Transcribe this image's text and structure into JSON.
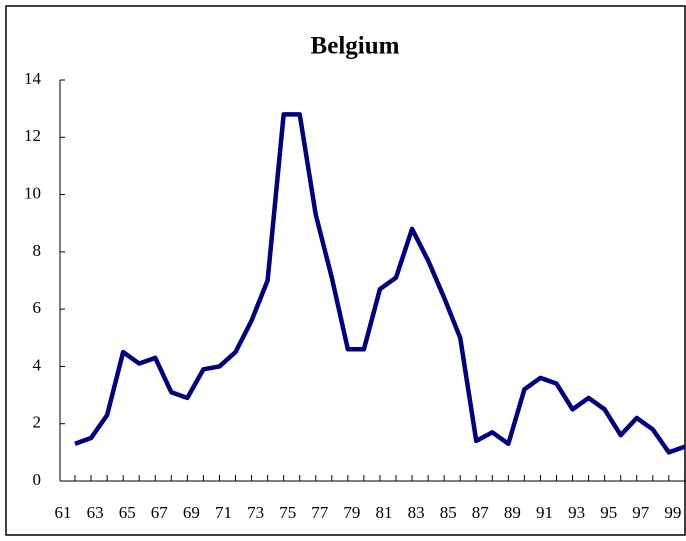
{
  "chart_data": {
    "type": "line",
    "title": "Belgium",
    "categories": [
      "61",
      null,
      "63",
      null,
      "65",
      null,
      "67",
      null,
      "69",
      null,
      "71",
      null,
      "73",
      null,
      "75",
      null,
      "77",
      null,
      "79",
      null,
      "81",
      null,
      "83",
      null,
      "85",
      null,
      "87",
      null,
      "89",
      null,
      "91",
      null,
      "93",
      null,
      "95",
      null,
      "97",
      null,
      "99"
    ],
    "series": [
      {
        "name": "Belgium",
        "color": "#000080",
        "values": [
          1.3,
          1.5,
          2.3,
          4.5,
          4.1,
          4.3,
          3.1,
          2.9,
          3.9,
          4.0,
          4.5,
          5.6,
          7.0,
          12.8,
          12.8,
          9.3,
          7.1,
          4.6,
          4.6,
          6.7,
          7.1,
          8.8,
          7.7,
          6.4,
          5.0,
          1.4,
          1.7,
          1.3,
          3.2,
          3.6,
          3.4,
          2.5,
          2.9,
          2.5,
          1.6,
          2.2,
          1.8,
          1.0,
          1.2
        ]
      }
    ],
    "ylim": [
      0,
      14
    ],
    "yticks": [
      0,
      2,
      4,
      6,
      8,
      10,
      12,
      14
    ],
    "grid": false
  }
}
